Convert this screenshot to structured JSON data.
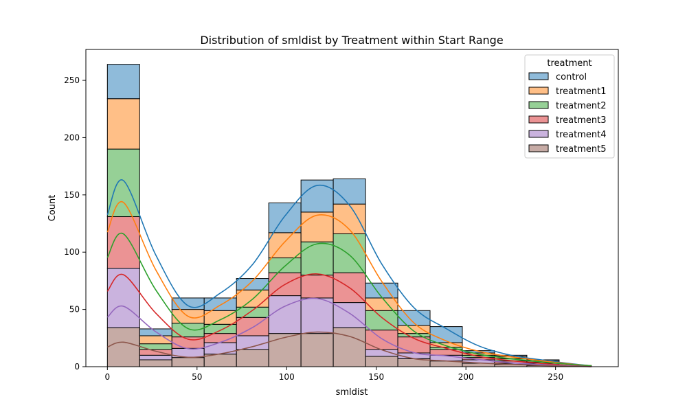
{
  "chart_data": {
    "type": "bar",
    "subtype": "stacked histogram with KDE",
    "title": "Distribution of smldist by Treatment within Start Range",
    "xlabel": "smldist",
    "ylabel": "Count",
    "xlim": [
      -12,
      285
    ],
    "ylim": [
      0,
      277
    ],
    "xticks": [
      0,
      50,
      100,
      150,
      200,
      250
    ],
    "yticks": [
      0,
      50,
      100,
      150,
      200,
      250
    ],
    "grid": false,
    "legend": {
      "title": "treatment",
      "placement": "top-right"
    },
    "bin_edges": [
      0,
      18,
      36,
      54,
      72,
      90,
      108,
      126,
      144,
      162,
      180,
      198,
      216,
      234,
      252,
      270
    ],
    "stack_order_bottom_to_top": [
      "treatment5",
      "treatment4",
      "treatment3",
      "treatment2",
      "treatment1",
      "control"
    ],
    "series": [
      {
        "name": "control",
        "color": "#1f77b4",
        "cumulative_top": [
          264,
          33,
          60,
          60,
          77,
          143,
          163,
          164,
          73,
          49,
          35,
          14,
          10,
          6,
          1
        ]
      },
      {
        "name": "treatment1",
        "color": "#ff7f0e",
        "cumulative_top": [
          234,
          27,
          50,
          49,
          67,
          117,
          135,
          142,
          60,
          36,
          21,
          12,
          9,
          5,
          1
        ]
      },
      {
        "name": "treatment2",
        "color": "#2ca02c",
        "cumulative_top": [
          190,
          20,
          38,
          37,
          52,
          95,
          109,
          116,
          49,
          29,
          17,
          10,
          7,
          4,
          1
        ]
      },
      {
        "name": "treatment3",
        "color": "#d62728",
        "cumulative_top": [
          131,
          15,
          26,
          29,
          43,
          82,
          80,
          82,
          32,
          26,
          15,
          8,
          5,
          3,
          0
        ]
      },
      {
        "name": "treatment4",
        "color": "#9467bd",
        "cumulative_top": [
          86,
          10,
          16,
          21,
          27,
          62,
          60,
          56,
          15,
          12,
          10,
          6,
          3,
          2,
          0
        ]
      },
      {
        "name": "treatment5",
        "color": "#8c564b",
        "cumulative_top": [
          34,
          6,
          8,
          11,
          15,
          29,
          29,
          34,
          9,
          7,
          5,
          3,
          2,
          1,
          0
        ]
      }
    ]
  }
}
